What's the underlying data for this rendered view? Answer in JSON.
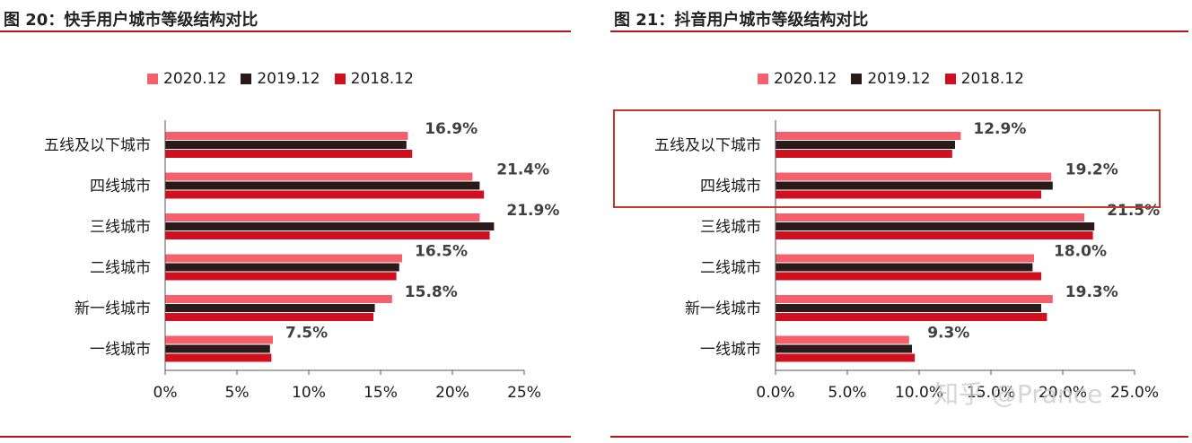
{
  "charts": [
    {
      "title": "图 20：快手用户城市等级结构对比",
      "chart_data": {
        "type": "bar",
        "orientation": "horizontal",
        "categories": [
          "五线及以下城市",
          "四线城市",
          "三线城市",
          "二线城市",
          "新一线城市",
          "一线城市"
        ],
        "series": [
          {
            "name": "2020.12",
            "color": "#f4606c",
            "values": [
              16.9,
              21.4,
              21.9,
              16.5,
              15.8,
              7.5
            ]
          },
          {
            "name": "2019.12",
            "color": "#2b1a1a",
            "values": [
              16.8,
              21.9,
              22.9,
              16.3,
              14.6,
              7.3
            ]
          },
          {
            "name": "2018.12",
            "color": "#d0101e",
            "values": [
              17.2,
              22.2,
              22.6,
              16.1,
              14.5,
              7.4
            ]
          }
        ],
        "data_labels": [
          "16.9%",
          "21.4%",
          "21.9%",
          "16.5%",
          "15.8%",
          "7.5%"
        ],
        "xlim": [
          0,
          25
        ],
        "xticks": [
          "0%",
          "5%",
          "10%",
          "15%",
          "20%",
          "25%"
        ],
        "legend_position": "top",
        "grid": false
      }
    },
    {
      "title": "图 21：抖音用户城市等级结构对比",
      "chart_data": {
        "type": "bar",
        "orientation": "horizontal",
        "categories": [
          "五线及以下城市",
          "四线城市",
          "三线城市",
          "二线城市",
          "新一线城市",
          "一线城市"
        ],
        "series": [
          {
            "name": "2020.12",
            "color": "#f4606c",
            "values": [
              12.9,
              19.2,
              21.5,
              18.0,
              19.3,
              9.3
            ]
          },
          {
            "name": "2019.12",
            "color": "#2b1a1a",
            "values": [
              12.5,
              19.3,
              22.2,
              17.9,
              18.5,
              9.5
            ]
          },
          {
            "name": "2018.12",
            "color": "#d0101e",
            "values": [
              12.3,
              18.5,
              22.1,
              18.5,
              18.9,
              9.7
            ]
          }
        ],
        "data_labels": [
          "12.9%",
          "19.2%",
          "21.5%",
          "18.0%",
          "19.3%",
          "9.3%"
        ],
        "xlim": [
          0,
          25
        ],
        "xticks": [
          "0.0%",
          "5.0%",
          "10.0%",
          "15.0%",
          "20.0%",
          "25.0%"
        ],
        "legend_position": "top",
        "grid": false,
        "highlighted_categories": [
          "五线及以下城市",
          "四线城市"
        ]
      }
    }
  ],
  "watermark": "知乎 @Prance"
}
